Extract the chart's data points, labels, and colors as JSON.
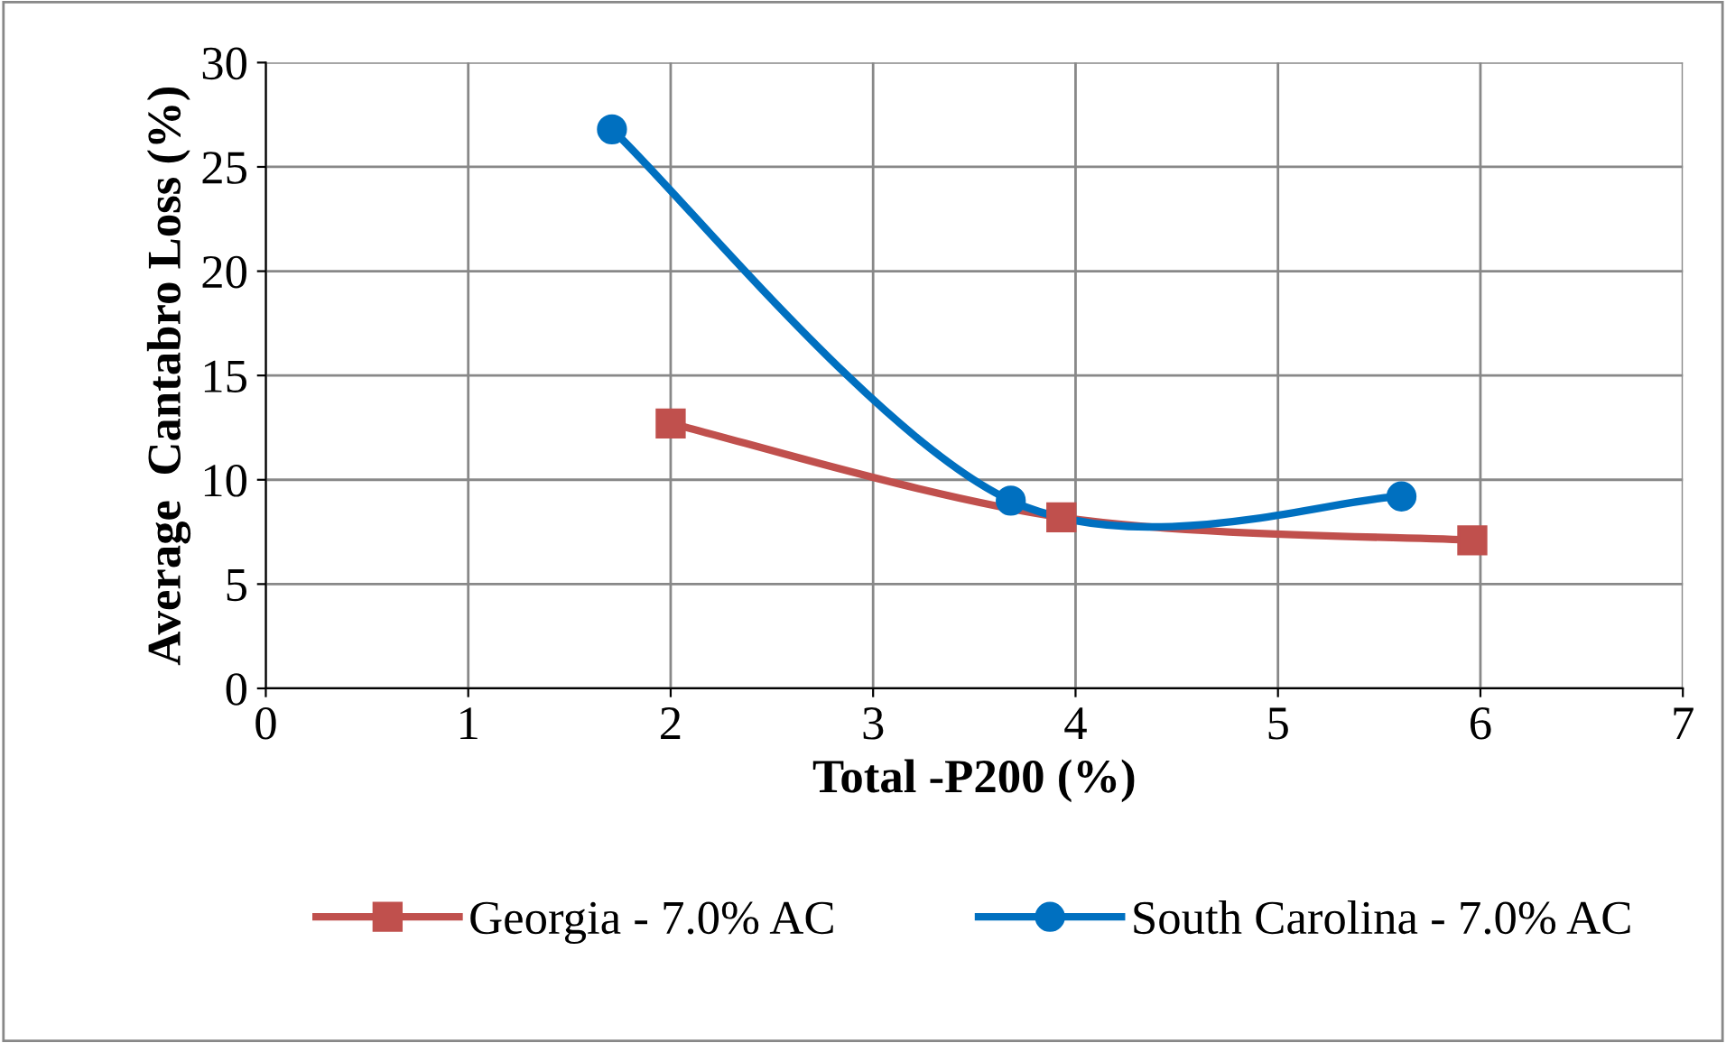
{
  "chart_data": {
    "type": "line",
    "xlabel": "Total -P200 (%)",
    "ylabel": "Average  Cantabro Loss (%)",
    "xlim": [
      0,
      7
    ],
    "xticks": [
      0,
      1,
      2,
      3,
      4,
      5,
      6,
      7
    ],
    "ylim": [
      0,
      30
    ],
    "yticks": [
      0,
      5,
      10,
      15,
      20,
      25,
      30
    ],
    "grid": true,
    "legend": "bottom",
    "line_style": "solid",
    "series": [
      {
        "name": "Georgia - 7.0% AC",
        "color": "#c0504d",
        "marker": "square",
        "x": [
          2.0,
          3.93,
          5.96
        ],
        "values": [
          12.7,
          8.2,
          7.1
        ]
      },
      {
        "name": "South Carolina - 7.0% AC",
        "color": "#0070c0",
        "marker": "circle",
        "x": [
          1.71,
          3.68,
          5.61
        ],
        "values": [
          26.8,
          9.0,
          9.2
        ]
      }
    ]
  }
}
